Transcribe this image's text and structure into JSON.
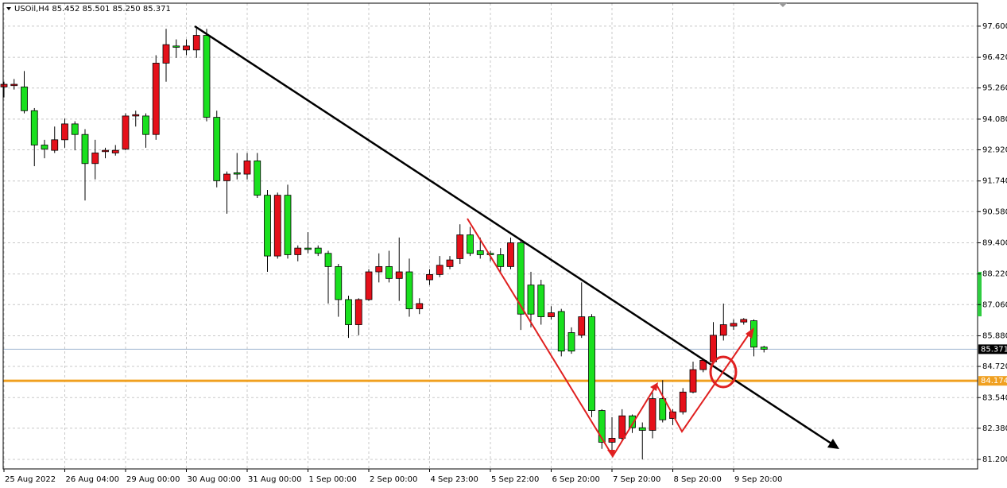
{
  "chart_data": {
    "type": "candlestick",
    "title": "USOil,H4  85.452 85.501 85.250 85.371",
    "up_color": "#e5101a",
    "down_color": "#19e01e",
    "grid": true,
    "categories": [
      "25 Aug 2022",
      null,
      null,
      null,
      null,
      null,
      "26 Aug 04:00",
      null,
      null,
      null,
      null,
      null,
      "29 Aug 00:00",
      null,
      null,
      null,
      null,
      null,
      "30 Aug 00:00",
      null,
      null,
      null,
      null,
      null,
      "31 Aug 00:00",
      null,
      null,
      null,
      null,
      null,
      "1 Sep 00:00",
      null,
      null,
      null,
      null,
      null,
      "2 Sep 00:00",
      null,
      null,
      null,
      null,
      null,
      "4 Sep 23:00",
      null,
      null,
      null,
      null,
      null,
      "5 Sep 22:00",
      null,
      null,
      null,
      null,
      null,
      "6 Sep 20:00",
      null,
      null,
      null,
      null,
      null,
      "7 Sep 20:00",
      null,
      null,
      null,
      null,
      null,
      "8 Sep 20:00",
      null,
      null,
      null,
      null,
      null,
      "9 Sep 20:00",
      null,
      null,
      null
    ],
    "open": [
      95.3,
      95.35,
      95.3,
      94.4,
      93.1,
      92.9,
      93.3,
      93.9,
      93.5,
      92.4,
      92.85,
      92.8,
      92.95,
      94.2,
      94.2,
      93.5,
      96.2,
      96.85,
      96.7,
      96.7,
      97.25,
      94.15,
      91.75,
      92.05,
      92.0,
      92.5,
      91.2,
      88.9,
      91.2,
      88.95,
      89.2,
      89.2,
      89.0,
      88.5,
      87.25,
      86.3,
      87.25,
      88.3,
      88.5,
      88.05,
      88.3,
      86.9,
      88.0,
      88.2,
      88.5,
      88.8,
      89.7,
      89.1,
      89.0,
      88.95,
      88.5,
      89.4,
      87.8,
      87.8,
      86.6,
      86.8,
      86.0,
      85.9,
      86.6,
      83.05,
      81.85,
      82.0,
      82.85,
      82.4,
      82.3,
      83.5,
      82.75,
      83.0,
      83.75,
      84.6,
      84.9,
      85.9,
      86.25,
      86.4,
      86.45,
      85.452
    ],
    "high": [
      95.5,
      95.6,
      95.9,
      94.5,
      93.3,
      93.8,
      94.1,
      94.0,
      93.7,
      93.3,
      93.0,
      93.1,
      94.3,
      94.4,
      94.3,
      96.5,
      97.5,
      97.1,
      97.1,
      97.6,
      97.5,
      94.4,
      92.1,
      92.8,
      92.8,
      92.8,
      91.4,
      91.3,
      91.6,
      89.3,
      89.8,
      89.3,
      89.1,
      88.6,
      87.4,
      87.3,
      88.4,
      89.0,
      89.1,
      89.6,
      88.8,
      87.3,
      88.4,
      88.9,
      88.9,
      90.1,
      90.0,
      89.6,
      89.1,
      89.2,
      89.6,
      89.5,
      88.3,
      88.0,
      87.0,
      86.9,
      86.2,
      87.9,
      86.7,
      83.1,
      82.8,
      83.1,
      82.9,
      82.6,
      83.8,
      84.2,
      83.1,
      83.9,
      84.9,
      85.0,
      86.4,
      87.1,
      86.5,
      86.55,
      86.5,
      85.501
    ],
    "low": [
      94.9,
      95.2,
      94.3,
      92.3,
      92.6,
      92.8,
      93.0,
      92.9,
      91.0,
      91.8,
      92.6,
      92.7,
      92.9,
      93.8,
      93.0,
      93.3,
      95.5,
      96.4,
      96.5,
      96.4,
      94.0,
      91.5,
      90.5,
      91.8,
      91.8,
      91.1,
      88.3,
      88.8,
      88.8,
      88.7,
      89.0,
      88.9,
      87.1,
      86.6,
      85.8,
      85.9,
      87.2,
      87.9,
      87.9,
      87.2,
      86.6,
      86.7,
      87.8,
      88.1,
      88.4,
      88.6,
      88.9,
      88.8,
      88.7,
      88.3,
      88.4,
      86.1,
      86.2,
      86.3,
      86.5,
      85.1,
      85.2,
      85.8,
      82.8,
      81.6,
      81.4,
      81.9,
      82.2,
      81.2,
      82.0,
      82.6,
      82.5,
      82.9,
      83.7,
      84.5,
      84.8,
      85.7,
      86.1,
      86.3,
      85.1,
      85.25
    ],
    "close": [
      95.4,
      95.4,
      94.4,
      93.1,
      92.95,
      93.3,
      93.9,
      93.5,
      92.4,
      92.8,
      92.9,
      92.9,
      94.2,
      94.25,
      93.5,
      96.2,
      96.9,
      96.8,
      96.85,
      97.25,
      94.15,
      91.75,
      92.0,
      92.0,
      92.5,
      91.2,
      88.9,
      91.2,
      88.95,
      89.2,
      89.15,
      89.0,
      88.5,
      87.25,
      86.3,
      87.25,
      88.3,
      88.5,
      88.05,
      88.3,
      86.9,
      87.1,
      88.2,
      88.55,
      88.75,
      89.7,
      89.0,
      88.95,
      88.95,
      88.5,
      89.4,
      86.7,
      86.7,
      86.6,
      86.75,
      85.3,
      85.3,
      86.6,
      83.05,
      81.85,
      82.0,
      82.85,
      82.4,
      82.3,
      83.5,
      82.7,
      83.0,
      83.75,
      84.6,
      84.95,
      85.9,
      86.3,
      86.35,
      86.5,
      85.45,
      85.371
    ],
    "ylim": [
      80.84,
      98.47
    ],
    "yticks": [
      {
        "value": 97.6,
        "label": "97.600"
      },
      {
        "value": 96.42,
        "label": "96.420"
      },
      {
        "value": 95.26,
        "label": "95.260"
      },
      {
        "value": 94.08,
        "label": "94.080"
      },
      {
        "value": 92.92,
        "label": "92.920"
      },
      {
        "value": 91.74,
        "label": "91.740"
      },
      {
        "value": 90.58,
        "label": "90.580"
      },
      {
        "value": 89.4,
        "label": "89.400"
      },
      {
        "value": 88.22,
        "label": "88.220"
      },
      {
        "value": 87.06,
        "label": "87.060"
      },
      {
        "value": 85.88,
        "label": "85.880"
      },
      {
        "value": 84.72,
        "label": "84.720"
      },
      {
        "value": 83.54,
        "label": "83.540"
      },
      {
        "value": 82.38,
        "label": "82.380"
      },
      {
        "value": 81.2,
        "label": "81.200"
      }
    ],
    "price_lines": [
      {
        "value": 85.371,
        "color": "#9fb6d0",
        "label_bg": "#000000",
        "label_color": "#ffffff"
      },
      {
        "value": 84.174,
        "color": "#f0a020",
        "label_bg": "#f0a020",
        "label_color": "#ffffff"
      }
    ]
  }
}
